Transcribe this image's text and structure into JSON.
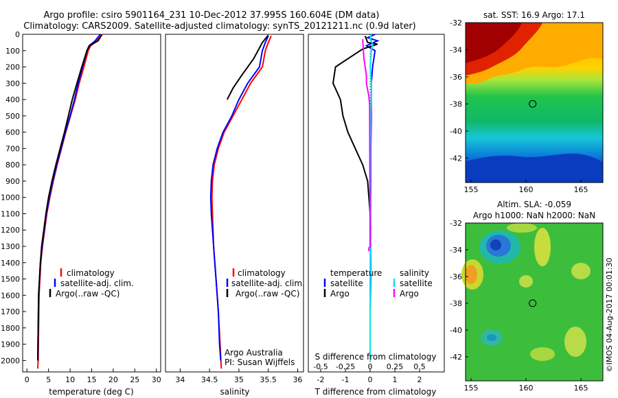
{
  "header": {
    "line1": "Argo profile: csiro 5901164_231 10-Dec-2012 37.995S 160.604E (DM data)",
    "line2": "Climatology: CARS2009. Satellite-adjusted climatology: synTS_20121211.nc (0.9d later)"
  },
  "colors": {
    "climatology": "#ff0000",
    "satellite": "#0000ff",
    "argo": "#000000",
    "sal_satellite": "#00e5ee",
    "sal_argo": "#ff00ff"
  },
  "chart_data": [
    {
      "type": "line",
      "panel": "temperature",
      "xlabel": "temperature (deg C)",
      "ylabel": "",
      "xlim": [
        -1,
        31
      ],
      "ylim": [
        2070,
        0
      ],
      "xticks": [
        "0",
        "5",
        "10",
        "15",
        "20",
        "25",
        "30"
      ],
      "xtick_values": [
        0,
        5,
        10,
        15,
        20,
        25,
        30
      ],
      "yticks": [
        "0",
        "100",
        "200",
        "300",
        "400",
        "500",
        "600",
        "700",
        "800",
        "900",
        "1000",
        "1100",
        "1200",
        "1300",
        "1400",
        "1500",
        "1600",
        "1700",
        "1800",
        "1900",
        "2000"
      ],
      "ytick_values": [
        0,
        100,
        200,
        300,
        400,
        500,
        600,
        700,
        800,
        900,
        1000,
        1100,
        1200,
        1300,
        1400,
        1500,
        1600,
        1700,
        1800,
        1900,
        2000
      ],
      "legend": [
        "climatology",
        "satellite-adj. clim.",
        "Argo(..raw -QC)"
      ],
      "series": [
        {
          "name": "climatology",
          "color_key": "climatology",
          "x": [
            17.5,
            16.2,
            14.8,
            14.2,
            13.2,
            12.1,
            11.2,
            10.1,
            9.0,
            8.0,
            7.0,
            6.1,
            5.3,
            4.6,
            4.1,
            3.6,
            3.2,
            3.0,
            2.8,
            2.7,
            2.6,
            2.5
          ],
          "y": [
            0,
            40,
            70,
            100,
            200,
            300,
            400,
            500,
            600,
            700,
            800,
            900,
            1000,
            1100,
            1200,
            1300,
            1400,
            1500,
            1600,
            1800,
            2000,
            2050
          ]
        },
        {
          "name": "satellite-adj. clim.",
          "color_key": "satellite",
          "x": [
            17.0,
            15.8,
            14.4,
            13.9,
            12.9,
            11.9,
            11.0,
            10.0,
            8.9,
            7.9,
            6.9,
            6.0,
            5.2,
            4.5,
            4.0,
            3.5,
            3.1,
            2.9,
            2.7,
            2.6,
            2.5
          ],
          "y": [
            0,
            40,
            70,
            100,
            200,
            300,
            400,
            500,
            600,
            700,
            800,
            900,
            1000,
            1100,
            1200,
            1300,
            1400,
            1500,
            1600,
            1800,
            2000
          ]
        },
        {
          "name": "Argo(..raw -QC)",
          "color_key": "argo",
          "x": [
            17.3,
            16.5,
            14.5,
            13.9,
            12.7,
            11.6,
            10.5,
            9.6,
            8.7,
            7.7,
            6.7,
            5.8,
            5.0,
            4.4,
            3.9,
            3.4,
            3.1,
            2.9,
            2.7,
            2.6,
            2.5
          ],
          "y": [
            5,
            40,
            70,
            100,
            200,
            300,
            400,
            500,
            600,
            700,
            800,
            900,
            1000,
            1100,
            1200,
            1300,
            1400,
            1500,
            1600,
            1800,
            2000
          ]
        }
      ]
    },
    {
      "type": "line",
      "panel": "salinity",
      "xlabel": "salinity",
      "xlim": [
        33.75,
        36.1
      ],
      "ylim": [
        2070,
        0
      ],
      "xticks": [
        "34",
        "34.5",
        "35",
        "35.5",
        "36"
      ],
      "xtick_values": [
        34,
        34.5,
        35,
        35.5,
        36
      ],
      "legend": [
        "climatology",
        "satellite-adj. clim.",
        "Argo(..raw -QC)"
      ],
      "annotation1": "Argo Australia",
      "annotation2": "PI: Susan Wijffels",
      "series": [
        {
          "name": "climatology",
          "color_key": "climatology",
          "x": [
            35.55,
            35.5,
            35.45,
            35.4,
            35.2,
            35.05,
            34.9,
            34.75,
            34.65,
            34.58,
            34.55,
            34.54,
            34.55,
            34.56,
            34.57,
            34.59,
            34.61,
            34.63,
            34.65,
            34.68,
            34.7
          ],
          "y": [
            10,
            50,
            100,
            200,
            300,
            400,
            500,
            600,
            700,
            800,
            900,
            1000,
            1100,
            1200,
            1300,
            1400,
            1500,
            1600,
            1700,
            1900,
            2050
          ]
        },
        {
          "name": "satellite-adj. clim.",
          "color_key": "satellite",
          "x": [
            35.5,
            35.45,
            35.4,
            35.35,
            35.15,
            35.0,
            34.88,
            34.73,
            34.63,
            34.56,
            34.53,
            34.52,
            34.53,
            34.55,
            34.57,
            34.59,
            34.61,
            34.63,
            34.65,
            34.67,
            34.69
          ],
          "y": [
            10,
            50,
            100,
            200,
            300,
            400,
            500,
            600,
            700,
            800,
            900,
            1000,
            1100,
            1200,
            1300,
            1400,
            1500,
            1600,
            1700,
            1900,
            2000
          ]
        },
        {
          "name": "Argo(..raw -QC)",
          "color_key": "argo",
          "x": [
            35.5,
            35.4,
            35.25,
            35.05,
            34.9,
            34.8
          ],
          "y": [
            5,
            50,
            150,
            250,
            330,
            400
          ]
        }
      ]
    },
    {
      "type": "line",
      "panel": "difference",
      "xlabel": "T difference from climatology",
      "xlabel_top": "S difference from climatology",
      "xlim": [
        -2.5,
        3.0
      ],
      "ylim": [
        2070,
        0
      ],
      "xticks": [
        "-2",
        "-1",
        "0",
        "1",
        "2"
      ],
      "xtick_values": [
        -2,
        -1,
        0,
        1,
        2
      ],
      "sticks": [
        "-0.5",
        "-0.25",
        "0",
        "0.25",
        "0.5"
      ],
      "stick_values": [
        -0.5,
        -0.25,
        0,
        0.25,
        0.5
      ],
      "legend_temperature": "temperature",
      "legend_salinity": "salinity",
      "legend_satellite": "satellite",
      "legend_argo": "Argo",
      "series": [
        {
          "name": "satellite",
          "color_key": "satellite",
          "x": [
            0.2,
            -0.1,
            0.3,
            -0.15,
            0.2,
            0.1,
            0.05,
            0.05,
            0.05,
            0.03,
            0.03,
            0.02,
            0.02,
            0.02,
            0.01,
            0.0,
            0.0,
            0.0,
            0.0
          ],
          "y": [
            0,
            20,
            40,
            70,
            100,
            200,
            300,
            400,
            500,
            700,
            900,
            1100,
            1300,
            1500,
            1600,
            1700,
            1800,
            1900,
            2000
          ]
        },
        {
          "name": "Argo",
          "color_key": "argo",
          "x": [
            -0.2,
            -0.1,
            0.3,
            -0.3,
            -1.4,
            -1.5,
            -1.2,
            -1.1,
            -0.9,
            -0.6,
            -0.3,
            -0.1,
            -0.05,
            0.0,
            0.02
          ],
          "y": [
            10,
            50,
            60,
            90,
            200,
            300,
            400,
            500,
            600,
            700,
            800,
            900,
            1000,
            1100,
            1200
          ]
        },
        {
          "name": "satellite",
          "color_key": "sal_satellite",
          "x": [
            0.05,
            0.0,
            0.1,
            0.05,
            0.0,
            0.05,
            0.05,
            0.03,
            0.02,
            0.02,
            0.01,
            0.01,
            0.0,
            0.0,
            0.0
          ],
          "y": [
            0,
            20,
            60,
            100,
            200,
            300,
            400,
            500,
            700,
            900,
            1100,
            1300,
            1500,
            1800,
            2000
          ]
        },
        {
          "name": "Argo",
          "color_key": "sal_argo",
          "x": [
            -0.3,
            -0.25,
            -0.2,
            -0.15,
            -0.15,
            -0.05,
            -0.02,
            0.0,
            -0.05,
            -0.05
          ],
          "y": [
            30,
            150,
            200,
            250,
            300,
            380,
            430,
            1300,
            1310,
            1330
          ]
        }
      ]
    },
    {
      "type": "heatmap",
      "panel": "sst_map",
      "title": "sat. SST: 16.9 Argo: 17.1",
      "xlim": [
        154.5,
        167
      ],
      "ylim": [
        -43.8,
        -32
      ],
      "xticks": [
        "155",
        "160",
        "165"
      ],
      "xtick_values": [
        155,
        160,
        165
      ],
      "yticks": [
        "-32",
        "-34",
        "-36",
        "-38",
        "-40",
        "-42"
      ],
      "ytick_values": [
        -32,
        -34,
        -36,
        -38,
        -40,
        -42
      ],
      "marker": [
        160.604,
        -37.995
      ]
    },
    {
      "type": "heatmap",
      "panel": "sla_map",
      "title": "Altim. SLA: -0.059",
      "subtitle": "Argo h1000: NaN h2000: NaN",
      "xlim": [
        154.5,
        167
      ],
      "ylim": [
        -43.8,
        -32
      ],
      "xticks": [
        "155",
        "160",
        "165"
      ],
      "xtick_values": [
        155,
        160,
        165
      ],
      "yticks": [
        "-32",
        "-34",
        "-36",
        "-38",
        "-40",
        "-42"
      ],
      "ytick_values": [
        -32,
        -34,
        -36,
        -38,
        -40,
        -42
      ],
      "marker": [
        160.604,
        -37.995
      ]
    }
  ],
  "footer": {
    "stamp": "©IMOS 04-Aug-2017 00:01:30"
  }
}
